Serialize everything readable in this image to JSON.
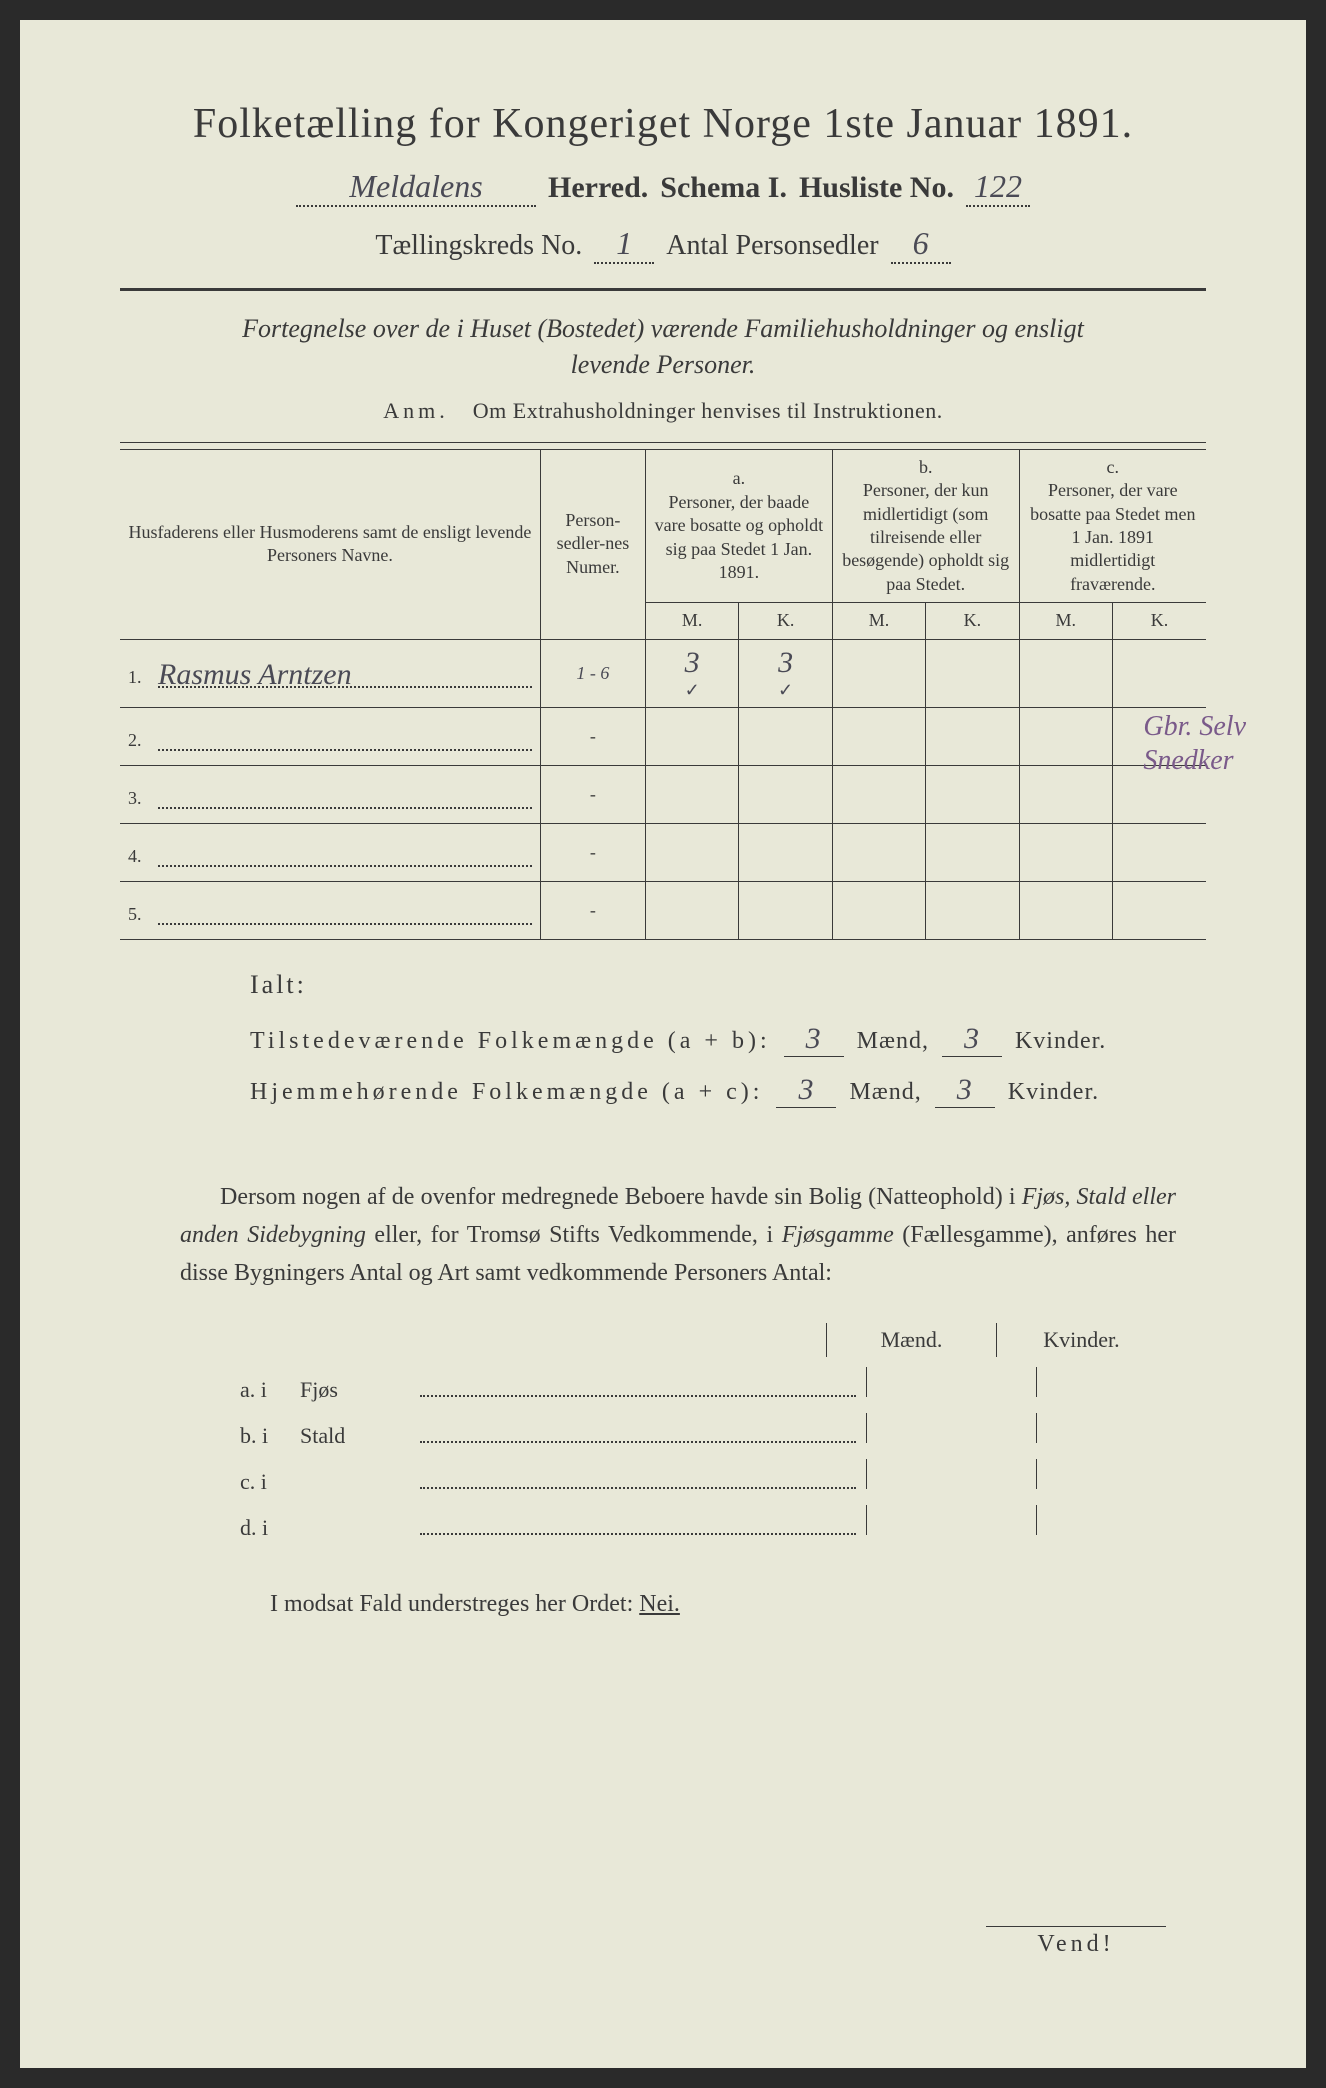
{
  "header": {
    "title": "Folketælling for Kongeriget Norge 1ste Januar 1891.",
    "herred_value": "Meldalens",
    "herred_label": "Herred.",
    "schema_label": "Schema I.",
    "husliste_label": "Husliste No.",
    "husliste_value": "122",
    "kreds_label": "Tællingskreds No.",
    "kreds_value": "1",
    "antal_label": "Antal Personsedler",
    "antal_value": "6"
  },
  "subtitle": "Fortegnelse over de i Huset (Bostedet) værende Familiehusholdninger og ensligt levende Personer.",
  "anm": {
    "label": "Anm.",
    "text": "Om Extrahusholdninger henvises til Instruktionen."
  },
  "table": {
    "col_name": "Husfaderens eller Husmoderens samt de ensligt levende Personers Navne.",
    "col_num": "Person-sedler-nes Numer.",
    "col_a_label": "a.",
    "col_a_text": "Personer, der baade vare bosatte og opholdt sig paa Stedet 1 Jan. 1891.",
    "col_b_label": "b.",
    "col_b_text": "Personer, der kun midlertidigt (som tilreisende eller besøgende) opholdt sig paa Stedet.",
    "col_c_label": "c.",
    "col_c_text": "Personer, der vare bosatte paa Stedet men 1 Jan. 1891 midlertidigt fraværende.",
    "m": "M.",
    "k": "K.",
    "rows": [
      {
        "num": "1.",
        "name": "Rasmus Arntzen",
        "pnum": "1 - 6",
        "am": "3",
        "ak": "3",
        "bm": "",
        "bk": "",
        "cm": "",
        "ck": ""
      },
      {
        "num": "2.",
        "name": "",
        "pnum": "",
        "am": "",
        "ak": "",
        "bm": "",
        "bk": "",
        "cm": "",
        "ck": ""
      },
      {
        "num": "3.",
        "name": "",
        "pnum": "",
        "am": "",
        "ak": "",
        "bm": "",
        "bk": "",
        "cm": "",
        "ck": ""
      },
      {
        "num": "4.",
        "name": "",
        "pnum": "",
        "am": "",
        "ak": "",
        "bm": "",
        "bk": "",
        "cm": "",
        "ck": ""
      },
      {
        "num": "5.",
        "name": "",
        "pnum": "",
        "am": "",
        "ak": "",
        "bm": "",
        "bk": "",
        "cm": "",
        "ck": ""
      }
    ],
    "checks": {
      "am": "✓",
      "ak": "✓"
    }
  },
  "side_note": {
    "line1": "Gbr. Selv",
    "line2": "Snedker"
  },
  "ialt": {
    "title": "Ialt:",
    "line1_label": "Tilstedeværende Folkemængde (a + b):",
    "line1_m": "3",
    "line1_k": "3",
    "line2_label": "Hjemmehørende Folkemængde (a + c):",
    "line2_m": "3",
    "line2_k": "3",
    "maend": "Mænd,",
    "kvinder": "Kvinder."
  },
  "paragraph": "Dersom nogen af de ovenfor medregnede Beboere havde sin Bolig (Natteophold) i Fjøs, Stald eller anden Sidebygning eller, for Tromsø Stifts Vedkommende, i Fjøsgamme (Fællesgamme), anføres her disse Bygningers Antal og Art samt vedkommende Personers Antal:",
  "mk": {
    "maend": "Mænd.",
    "kvinder": "Kvinder.",
    "rows": [
      {
        "lbl": "a.  i",
        "txt": "Fjøs"
      },
      {
        "lbl": "b.  i",
        "txt": "Stald"
      },
      {
        "lbl": "c.  i",
        "txt": ""
      },
      {
        "lbl": "d.  i",
        "txt": ""
      }
    ]
  },
  "nei": {
    "text": "I modsat Fald understreges her Ordet:",
    "word": "Nei."
  },
  "vend": "Vend!",
  "colors": {
    "paper": "#e8e8d8",
    "ink": "#3a3a3a",
    "handwriting": "#4a4a55",
    "purple_note": "#7a5a8a"
  }
}
